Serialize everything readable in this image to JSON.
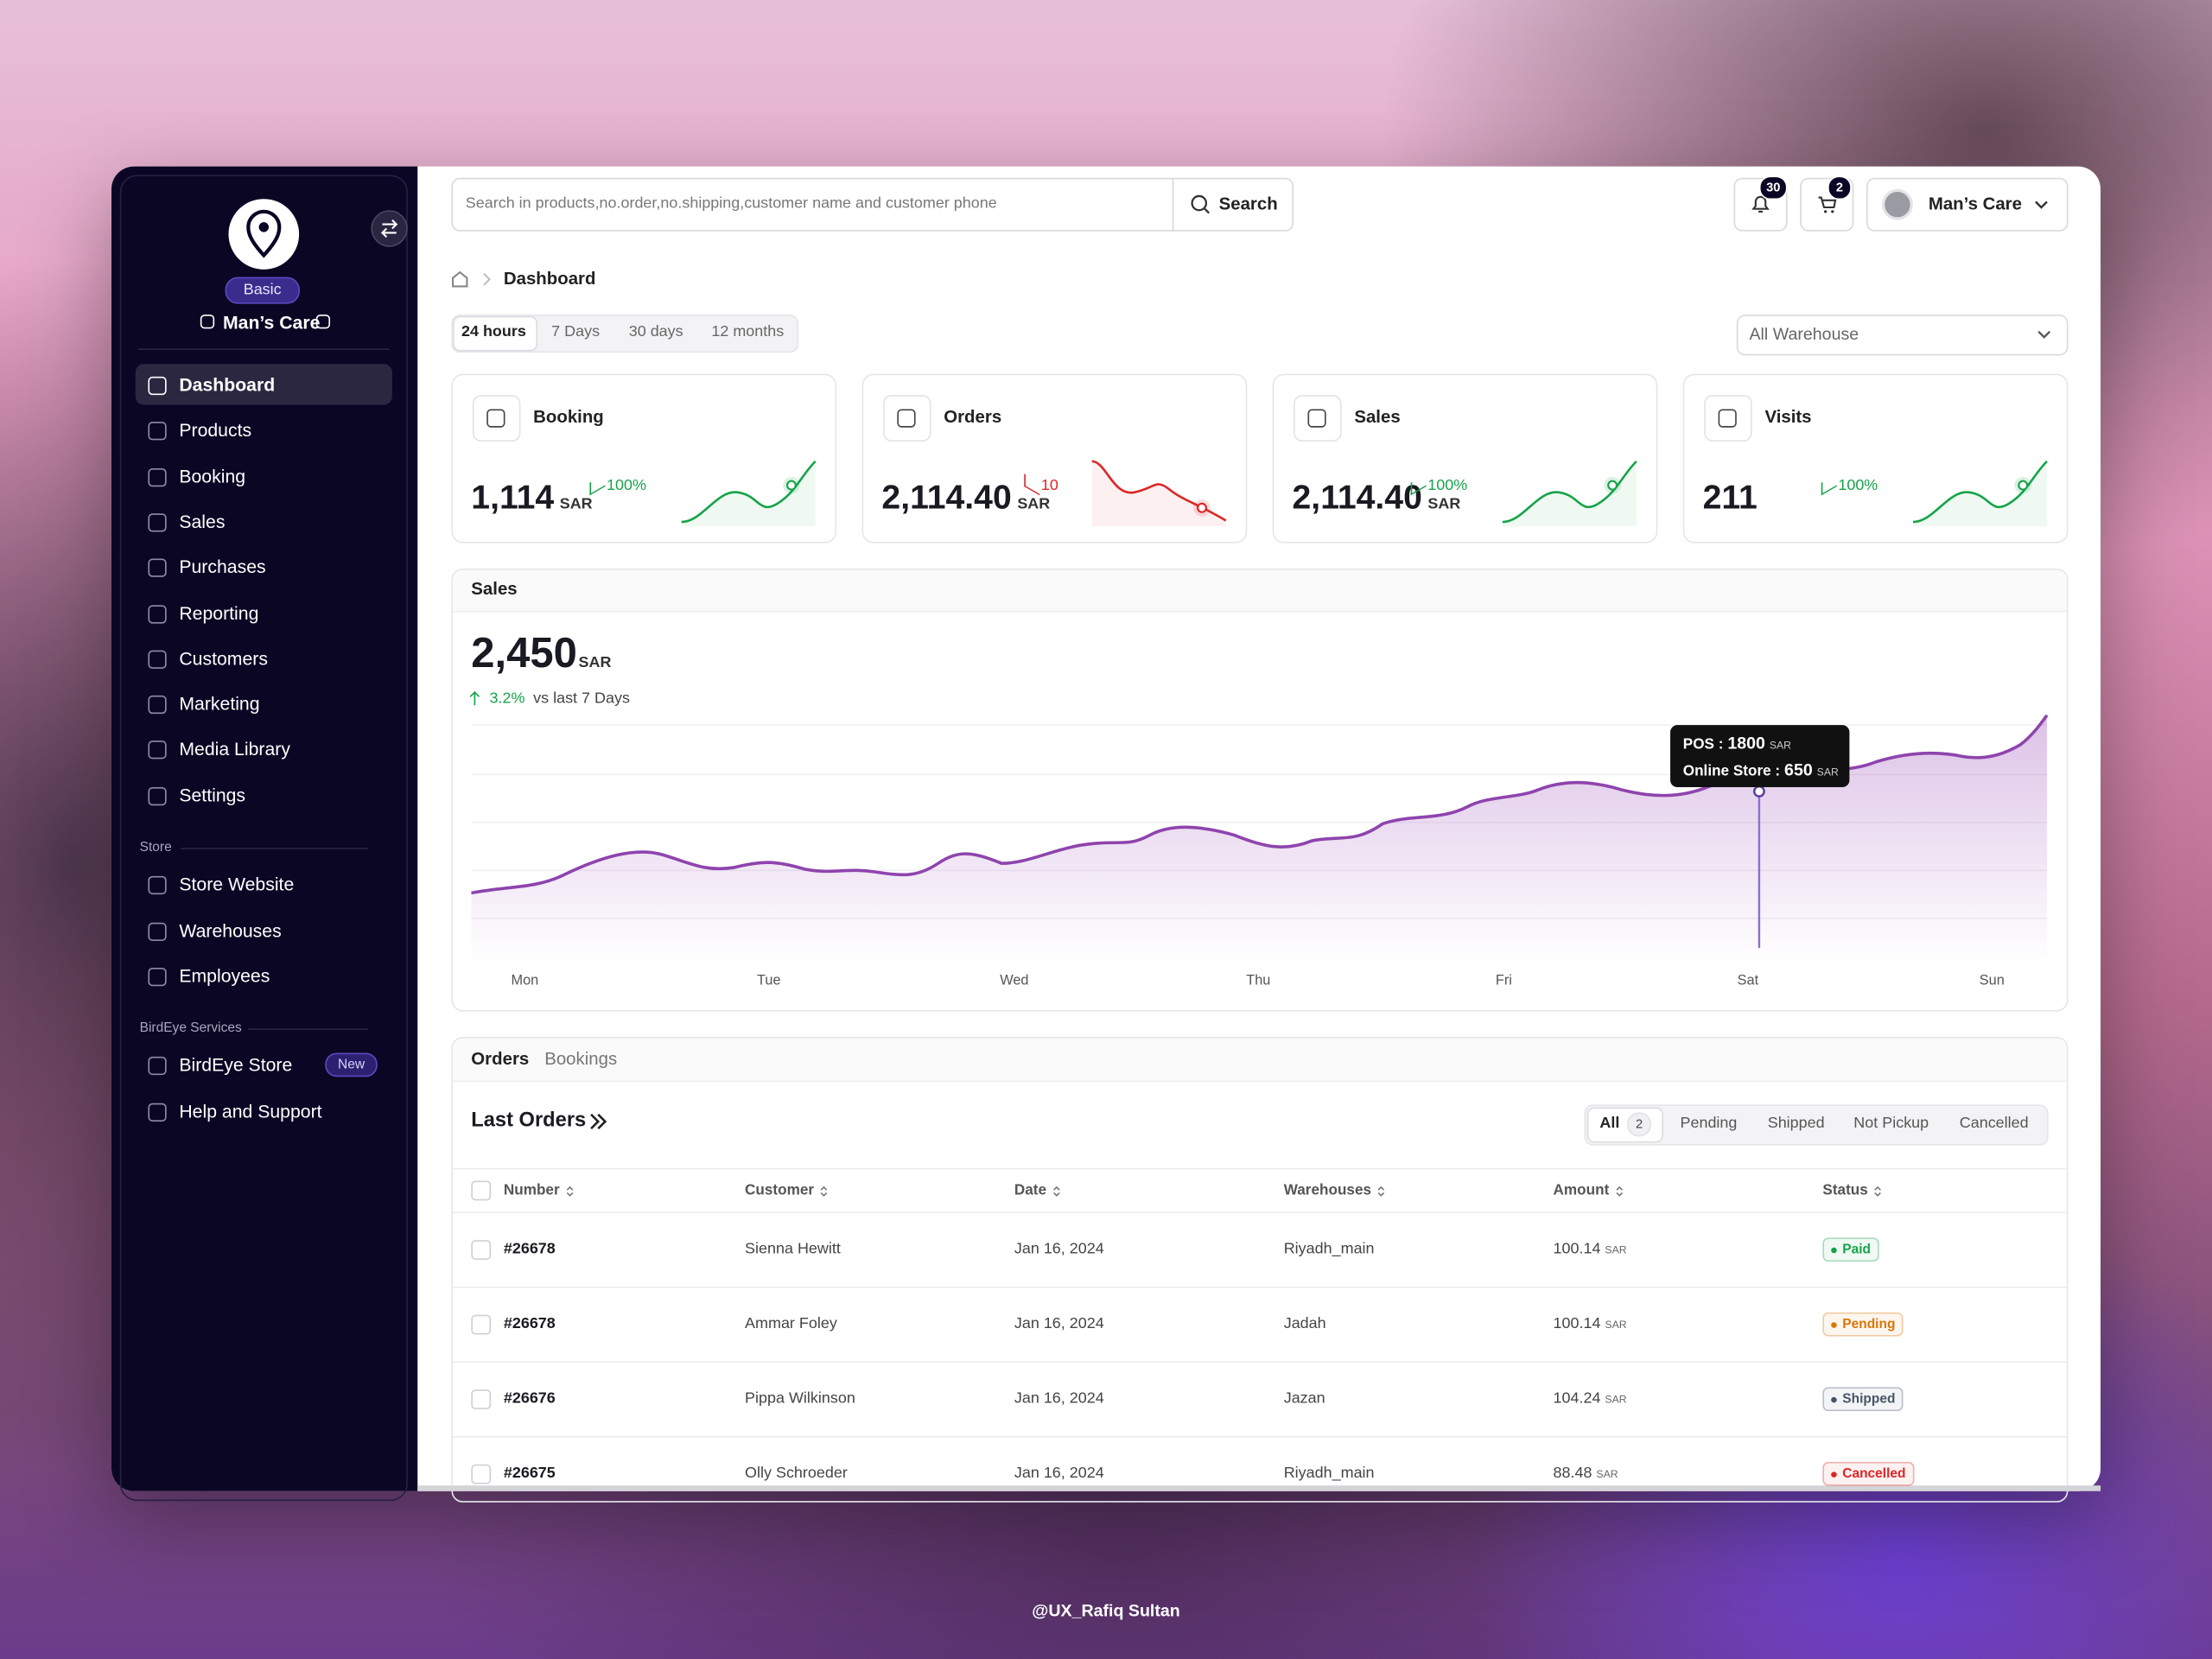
{
  "sidebar": {
    "plan": "Basic",
    "store_name": "Man’s Care",
    "nav": [
      "Dashboard",
      "Products",
      "Booking",
      "Sales",
      "Purchases",
      "Reporting",
      "Customers",
      "Marketing",
      "Media Library",
      "Settings"
    ],
    "store_section": {
      "title": "Store",
      "items": [
        "Store Website",
        "Warehouses",
        "Employees"
      ]
    },
    "services_section": {
      "title": "BirdEye Services",
      "items": [
        {
          "label": "BirdEye Store",
          "badge": "New"
        },
        {
          "label": "Help and Support"
        }
      ]
    }
  },
  "topbar": {
    "search_placeholder": "Search in products,no.order,no.shipping,customer name and customer phone",
    "search_button": "Search",
    "notifications": "30",
    "cart": "2",
    "account": "Man’s Care"
  },
  "breadcrumb": "Dashboard",
  "periods": [
    "24 hours",
    "7 Days",
    "30 days",
    "12 months"
  ],
  "warehouse_select": "All Warehouse",
  "stats": [
    {
      "title": "Booking",
      "value": "1,114",
      "unit": "SAR",
      "change": "100%",
      "trend": "up"
    },
    {
      "title": "Orders",
      "value": "2,114.40",
      "unit": "SAR",
      "change": "10",
      "trend": "down"
    },
    {
      "title": "Sales",
      "value": "2,114.40",
      "unit": "SAR",
      "change": "100%",
      "trend": "up"
    },
    {
      "title": "Visits",
      "value": "211",
      "change": "100%",
      "trend": "up"
    }
  ],
  "sales_chart": {
    "title": "Sales",
    "value": "2,450",
    "unit": "SAR",
    "change": "3.2%",
    "comparison": "vs last 7 Days",
    "days": [
      "Mon",
      "Tue",
      "Wed",
      "Thu",
      "Fri",
      "Sat",
      "Sun"
    ],
    "tooltip": {
      "pos_label": "POS :",
      "pos_value": "1800",
      "online_label": "Online Store :",
      "online_value": "650",
      "unit": "SAR"
    }
  },
  "orders": {
    "tabs": [
      "Orders",
      "Bookings"
    ],
    "title": "Last Orders",
    "filters": [
      {
        "label": "All",
        "count": "2"
      },
      {
        "label": "Pending"
      },
      {
        "label": "Shipped"
      },
      {
        "label": "Not Pickup"
      },
      {
        "label": "Cancelled"
      }
    ],
    "columns": [
      "Number",
      "Customer",
      "Date",
      "Warehouses",
      "Amount",
      "Status"
    ],
    "amount_unit": "SAR",
    "rows": [
      {
        "number": "#26678",
        "customer": "Sienna Hewitt",
        "date": "Jan 16, 2024",
        "warehouse": "Riyadh_main",
        "amount": "100.14",
        "status": "Paid",
        "status_color": "#16a34a"
      },
      {
        "number": "#26678",
        "customer": "Ammar Foley",
        "date": "Jan 16, 2024",
        "warehouse": "Jadah",
        "amount": "100.14",
        "status": "Pending",
        "status_color": "#d97706"
      },
      {
        "number": "#26676",
        "customer": "Pippa Wilkinson",
        "date": "Jan 16, 2024",
        "warehouse": "Jazan",
        "amount": "104.24",
        "status": "Shipped",
        "status_color": "#475569"
      },
      {
        "number": "#26675",
        "customer": "Olly Schroeder",
        "date": "Jan 16, 2024",
        "warehouse": "Riyadh_main",
        "amount": "88.48",
        "status": "Cancelled",
        "status_color": "#dc2626"
      }
    ]
  },
  "credit": "@UX_Rafiq Sultan"
}
